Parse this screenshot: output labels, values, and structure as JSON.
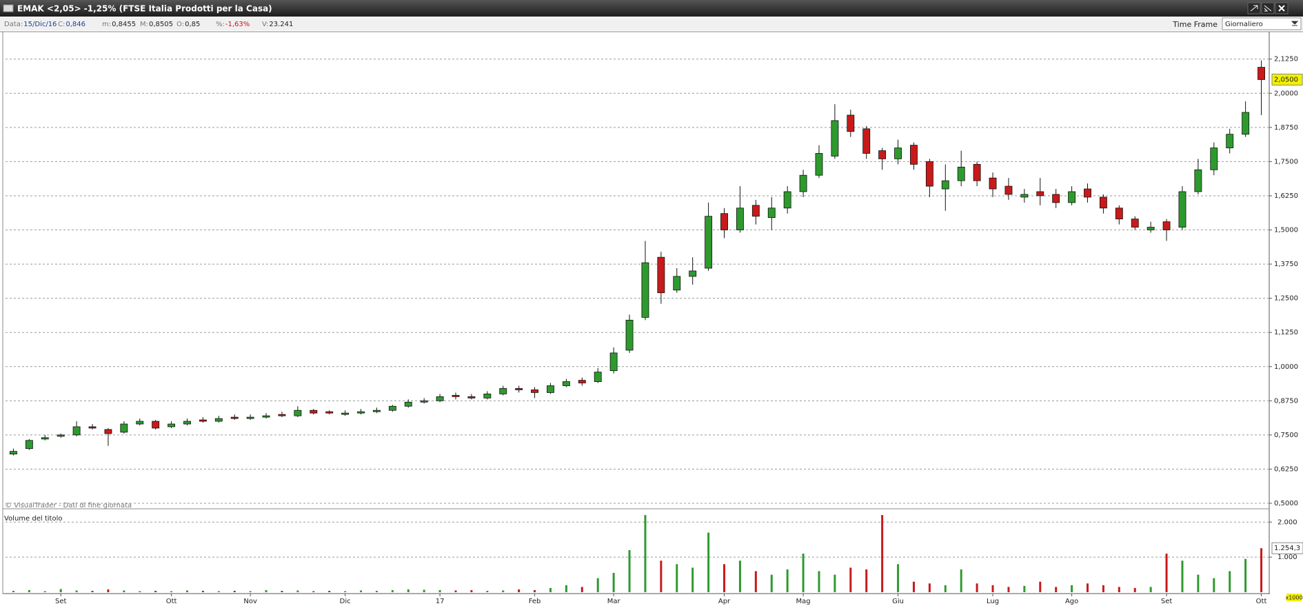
{
  "window": {
    "title": "EMAK <2,05> -1,25%  (FTSE Italia Prodotti per la Casa)",
    "info": [
      {
        "label": "Data:",
        "value": "15/Dic/16",
        "color": "#1f3f9a"
      },
      {
        "label": "C:",
        "value": "0,846",
        "color": "#1f3f9a"
      },
      {
        "label": "m:",
        "value": "0,8455",
        "color": "#222222"
      },
      {
        "label": "M:",
        "value": "0,8505",
        "color": "#222222"
      },
      {
        "label": "O:",
        "value": "0,85",
        "color": "#222222"
      },
      {
        "label": "%:",
        "value": "-1,63%",
        "color": "#d01010"
      },
      {
        "label": "V:",
        "value": "23.241",
        "color": "#222222"
      }
    ],
    "time_frame_label": "Time Frame",
    "time_frame": "Giornaliero"
  },
  "chart_data": {
    "type": "candlestick",
    "source": "© VisualTrader - Dati di fine giornata",
    "volume_title": "Volume del titolo",
    "volume_unit": "x1000",
    "up_color": "#2e9a2e",
    "down_color": "#c81a1a",
    "grid": true,
    "categories": [
      null,
      null,
      null,
      "Set",
      null,
      null,
      null,
      null,
      null,
      null,
      "Ott",
      null,
      null,
      null,
      null,
      "Nov",
      null,
      null,
      null,
      null,
      null,
      "Dic",
      null,
      null,
      null,
      null,
      null,
      "17",
      null,
      null,
      null,
      null,
      null,
      "Feb",
      null,
      null,
      null,
      null,
      "Mar",
      null,
      null,
      null,
      null,
      null,
      null,
      "Apr",
      null,
      null,
      null,
      null,
      "Mag",
      null,
      null,
      null,
      null,
      null,
      "Giu",
      null,
      null,
      null,
      null,
      null,
      "Lug",
      null,
      null,
      null,
      null,
      "Ago",
      null,
      null,
      null,
      null,
      null,
      "Set",
      null,
      null,
      null,
      null,
      null,
      "Ott"
    ],
    "open": [
      0.68,
      0.7,
      0.735,
      0.745,
      0.75,
      0.78,
      0.77,
      0.76,
      0.79,
      0.8,
      0.78,
      0.79,
      0.805,
      0.8,
      0.815,
      0.81,
      0.815,
      0.825,
      0.82,
      0.84,
      0.835,
      0.825,
      0.83,
      0.835,
      0.84,
      0.855,
      0.87,
      0.875,
      0.895,
      0.89,
      0.885,
      0.9,
      0.92,
      0.915,
      0.905,
      0.93,
      0.95,
      0.945,
      0.985,
      1.06,
      1.18,
      1.4,
      1.28,
      1.33,
      1.36,
      1.56,
      1.5,
      1.59,
      1.545,
      1.58,
      1.64,
      1.7,
      1.77,
      1.92,
      1.87,
      1.79,
      1.76,
      1.81,
      1.75,
      1.65,
      1.68,
      1.74,
      1.69,
      1.66,
      1.62,
      1.64,
      1.63,
      1.6,
      1.65,
      1.62,
      1.58,
      1.54,
      1.5,
      1.53,
      1.51,
      1.64,
      1.72,
      1.8,
      1.85,
      2.095
    ],
    "high": [
      0.7,
      0.735,
      0.75,
      0.755,
      0.8,
      0.79,
      0.775,
      0.8,
      0.81,
      0.805,
      0.8,
      0.81,
      0.815,
      0.82,
      0.825,
      0.825,
      0.83,
      0.835,
      0.855,
      0.845,
      0.84,
      0.84,
      0.845,
      0.85,
      0.86,
      0.88,
      0.885,
      0.9,
      0.905,
      0.9,
      0.91,
      0.93,
      0.93,
      0.925,
      0.94,
      0.955,
      0.96,
      0.995,
      1.07,
      1.19,
      1.46,
      1.42,
      1.36,
      1.4,
      1.6,
      1.58,
      1.66,
      1.61,
      1.62,
      1.66,
      1.72,
      1.81,
      1.96,
      1.94,
      1.88,
      1.8,
      1.83,
      1.82,
      1.76,
      1.74,
      1.79,
      1.75,
      1.71,
      1.69,
      1.65,
      1.69,
      1.65,
      1.66,
      1.67,
      1.63,
      1.59,
      1.55,
      1.53,
      1.54,
      1.66,
      1.76,
      1.82,
      1.87,
      1.97,
      2.12
    ],
    "low": [
      0.675,
      0.695,
      0.73,
      0.74,
      0.745,
      0.77,
      0.71,
      0.755,
      0.785,
      0.77,
      0.775,
      0.785,
      0.795,
      0.795,
      0.805,
      0.805,
      0.81,
      0.815,
      0.815,
      0.825,
      0.825,
      0.82,
      0.825,
      0.83,
      0.835,
      0.85,
      0.865,
      0.87,
      0.88,
      0.88,
      0.88,
      0.895,
      0.905,
      0.885,
      0.9,
      0.925,
      0.93,
      0.94,
      0.975,
      1.05,
      1.17,
      1.23,
      1.27,
      1.3,
      1.35,
      1.47,
      1.49,
      1.52,
      1.5,
      1.56,
      1.62,
      1.69,
      1.76,
      1.84,
      1.76,
      1.72,
      1.74,
      1.72,
      1.62,
      1.57,
      1.66,
      1.66,
      1.62,
      1.61,
      1.6,
      1.59,
      1.58,
      1.59,
      1.6,
      1.56,
      1.52,
      1.5,
      1.49,
      1.46,
      1.5,
      1.63,
      1.7,
      1.78,
      1.84,
      1.92
    ],
    "close": [
      0.69,
      0.73,
      0.74,
      0.75,
      0.78,
      0.775,
      0.755,
      0.79,
      0.8,
      0.775,
      0.79,
      0.8,
      0.8,
      0.81,
      0.81,
      0.815,
      0.82,
      0.82,
      0.84,
      0.83,
      0.83,
      0.83,
      0.835,
      0.84,
      0.855,
      0.87,
      0.875,
      0.89,
      0.89,
      0.885,
      0.9,
      0.92,
      0.915,
      0.905,
      0.93,
      0.945,
      0.94,
      0.98,
      1.05,
      1.17,
      1.38,
      1.27,
      1.33,
      1.35,
      1.55,
      1.5,
      1.58,
      1.55,
      1.58,
      1.64,
      1.7,
      1.78,
      1.9,
      1.86,
      1.78,
      1.76,
      1.8,
      1.74,
      1.66,
      1.68,
      1.73,
      1.68,
      1.65,
      1.63,
      1.63,
      1.625,
      1.6,
      1.64,
      1.62,
      1.58,
      1.54,
      1.51,
      1.51,
      1.5,
      1.64,
      1.72,
      1.8,
      1.85,
      1.93,
      2.05
    ],
    "volume": [
      40,
      60,
      30,
      90,
      50,
      40,
      80,
      50,
      30,
      40,
      30,
      50,
      40,
      30,
      40,
      30,
      60,
      40,
      50,
      30,
      40,
      30,
      50,
      40,
      60,
      80,
      70,
      60,
      50,
      60,
      40,
      50,
      80,
      60,
      120,
      200,
      150,
      400,
      550,
      1200,
      2200,
      900,
      800,
      700,
      1700,
      800,
      900,
      600,
      500,
      650,
      1100,
      600,
      500,
      700,
      650,
      2200,
      800,
      300,
      250,
      200,
      650,
      250,
      200,
      150,
      180,
      300,
      150,
      200,
      250,
      200,
      150,
      120,
      150,
      1100,
      900,
      500,
      400,
      600,
      950,
      1254.3
    ],
    "ylim": [
      0.5,
      2.2125
    ],
    "yticks": [
      {
        "value": 0.5,
        "label": "0,5000"
      },
      {
        "value": 0.625,
        "label": "0,6250"
      },
      {
        "value": 0.75,
        "label": "0,7500"
      },
      {
        "value": 0.875,
        "label": "0,8750"
      },
      {
        "value": 1.0,
        "label": "1,0000"
      },
      {
        "value": 1.125,
        "label": "1,1250"
      },
      {
        "value": 1.25,
        "label": "1,2500"
      },
      {
        "value": 1.375,
        "label": "1,3750"
      },
      {
        "value": 1.5,
        "label": "1,5000"
      },
      {
        "value": 1.625,
        "label": "1,6250"
      },
      {
        "value": 1.75,
        "label": "1,7500"
      },
      {
        "value": 1.875,
        "label": "1,8750"
      },
      {
        "value": 2.0,
        "label": "2,0000"
      },
      {
        "value": 2.125,
        "label": "2,1250"
      }
    ],
    "last_price": {
      "value": 2.05,
      "label": "2,0500"
    },
    "y2lim": [
      0,
      2300
    ],
    "y2ticks": [
      {
        "value": 1000,
        "label": "1.000"
      },
      {
        "value": 2000,
        "label": "2.000"
      }
    ],
    "last_volume": {
      "value": 1254.3,
      "label": "1.254,3"
    }
  }
}
